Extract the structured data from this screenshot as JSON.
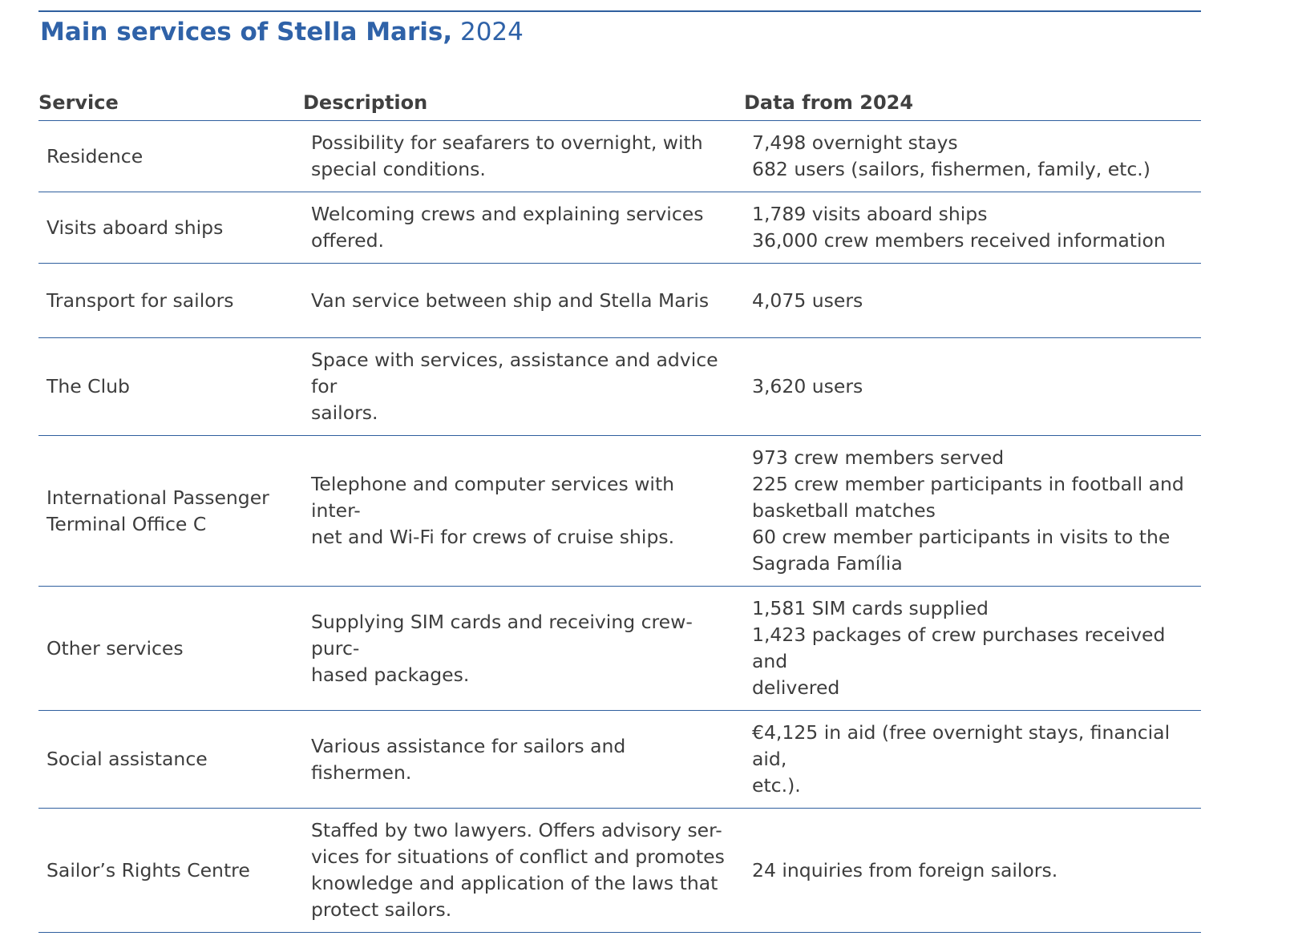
{
  "title": {
    "main": "Main services of Stella Maris,",
    "year": "2024"
  },
  "table": {
    "headers": {
      "service": "Service",
      "description": "Description",
      "data": "Data from 2024"
    },
    "rows": [
      {
        "service": [
          "Residence"
        ],
        "description": [
          "Possibility for seafarers to overnight, with",
          "special conditions."
        ],
        "data": [
          "7,498 overnight stays",
          "682 users (sailors, fishermen, family, etc.)"
        ]
      },
      {
        "service": [
          "Visits aboard ships"
        ],
        "description": [
          "Welcoming crews and explaining services",
          "offered."
        ],
        "data": [
          "1,789 visits aboard ships",
          "36,000 crew members received information"
        ]
      },
      {
        "service": [
          "Transport for sailors"
        ],
        "description": [
          "Van service between ship and Stella Maris"
        ],
        "data": [
          "4,075 users"
        ]
      },
      {
        "service": [
          "The Club"
        ],
        "description": [
          "Space with services, assistance and advice for",
          "sailors."
        ],
        "data": [
          "3,620 users"
        ]
      },
      {
        "service": [
          "International Passenger",
          "Terminal Office C"
        ],
        "description": [
          "Telephone and computer services with inter-",
          "net and Wi-Fi for crews of cruise ships."
        ],
        "data": [
          "973 crew members served",
          "225 crew member participants in football and",
          "basketball matches",
          "60 crew member participants in visits to the",
          "Sagrada Família"
        ]
      },
      {
        "service": [
          "Other services"
        ],
        "description": [
          "Supplying SIM cards and receiving crew-purc-",
          "hased packages."
        ],
        "data": [
          "1,581 SIM cards supplied",
          "1,423 packages of crew purchases received and",
          "delivered"
        ]
      },
      {
        "service": [
          "Social assistance"
        ],
        "description": [
          "Various assistance for sailors and fishermen."
        ],
        "data": [
          "€4,125 in aid (free overnight stays, financial aid,",
          "etc.)."
        ]
      },
      {
        "service": [
          "Sailor’s Rights Centre"
        ],
        "description": [
          "Staffed by two lawyers. Offers advisory ser-",
          "vices for situations of conflict and promotes",
          "knowledge and application of the laws that",
          "protect sailors."
        ],
        "data": [
          "24 inquiries from foreign sailors."
        ]
      }
    ]
  }
}
